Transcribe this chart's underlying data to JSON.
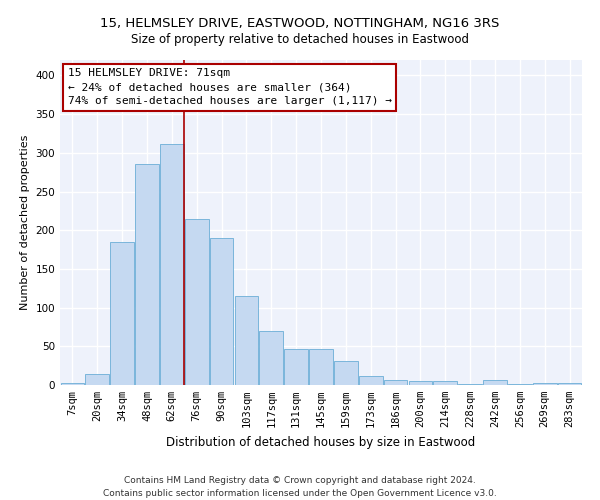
{
  "title1": "15, HELMSLEY DRIVE, EASTWOOD, NOTTINGHAM, NG16 3RS",
  "title2": "Size of property relative to detached houses in Eastwood",
  "xlabel": "Distribution of detached houses by size in Eastwood",
  "ylabel": "Number of detached properties",
  "footer1": "Contains HM Land Registry data © Crown copyright and database right 2024.",
  "footer2": "Contains public sector information licensed under the Open Government Licence v3.0.",
  "annotation_line1": "15 HELMSLEY DRIVE: 71sqm",
  "annotation_line2": "← 24% of detached houses are smaller (364)",
  "annotation_line3": "74% of semi-detached houses are larger (1,117) →",
  "bar_color": "#c5d9f1",
  "bar_edge_color": "#6baed6",
  "vline_color": "#aa0000",
  "bg_color": "#eef2fb",
  "grid_color": "#ffffff",
  "categories": [
    "7sqm",
    "20sqm",
    "34sqm",
    "48sqm",
    "62sqm",
    "76sqm",
    "90sqm",
    "103sqm",
    "117sqm",
    "131sqm",
    "145sqm",
    "159sqm",
    "173sqm",
    "186sqm",
    "200sqm",
    "214sqm",
    "228sqm",
    "242sqm",
    "256sqm",
    "269sqm",
    "283sqm"
  ],
  "bar_heights": [
    2,
    14,
    185,
    285,
    312,
    215,
    190,
    115,
    70,
    46,
    46,
    31,
    11,
    7,
    5,
    5,
    1,
    6,
    1,
    3,
    2
  ],
  "vline_x": 4.5,
  "ylim": [
    0,
    420
  ],
  "yticks": [
    0,
    50,
    100,
    150,
    200,
    250,
    300,
    350,
    400
  ],
  "title1_fontsize": 9.5,
  "title2_fontsize": 8.5,
  "xlabel_fontsize": 8.5,
  "ylabel_fontsize": 8,
  "tick_fontsize": 7.5,
  "footer_fontsize": 6.5,
  "annot_fontsize": 8
}
